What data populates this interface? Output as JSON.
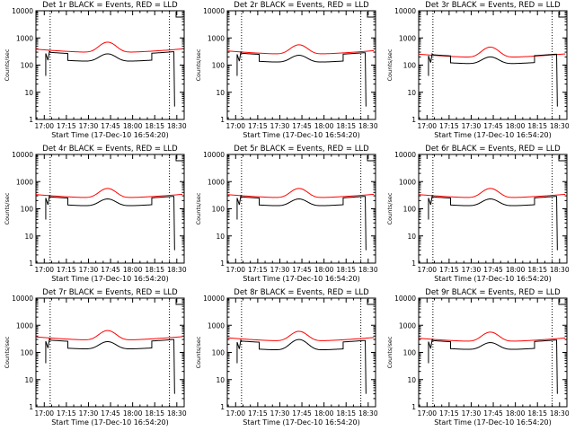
{
  "colors": {
    "events": "#000000",
    "lld": "#ff0000",
    "frame": "#000000",
    "background": "#ffffff"
  },
  "chart_data": [
    {
      "type": "line",
      "title": "Det 1r BLACK = Events, RED = LLD",
      "ylabel": "Counts/sec",
      "xlabel": "Start Time (17-Dec-10 16:54:20)",
      "y_scale": "log",
      "ylim": [
        1,
        10000
      ],
      "xlim": [
        "16:54:20",
        "18:35:00"
      ],
      "y_ticks": [
        "1",
        "10",
        "100",
        "1000",
        "10000"
      ],
      "x_ticks": [
        "17:00",
        "17:15",
        "17:30",
        "17:45",
        "18:00",
        "18:15",
        "18:30"
      ],
      "vlines": [
        "17:04",
        "18:25"
      ],
      "series_names": [
        "Events",
        "LLD"
      ],
      "peak": {
        "lld": 700,
        "events": 260
      },
      "base": {
        "lld": 290,
        "events": 135
      }
    },
    {
      "type": "line",
      "title": "Det 2r BLACK = Events, RED = LLD",
      "ylabel": "Counts/sec",
      "xlabel": "Start Time (17-Dec-10 16:54:20)",
      "y_scale": "log",
      "ylim": [
        1,
        10000
      ],
      "xlim": [
        "16:54:20",
        "18:35:00"
      ],
      "y_ticks": [
        "1",
        "10",
        "100",
        "1000",
        "10000"
      ],
      "x_ticks": [
        "17:00",
        "17:15",
        "17:30",
        "17:45",
        "18:00",
        "18:15",
        "18:30"
      ],
      "vlines": [
        "17:04",
        "18:25"
      ],
      "series_names": [
        "Events",
        "LLD"
      ],
      "peak": {
        "lld": 560,
        "events": 230
      },
      "base": {
        "lld": 250,
        "events": 125
      }
    },
    {
      "type": "line",
      "title": "Det 3r BLACK = Events, RED = LLD",
      "ylabel": "Counts/sec",
      "xlabel": "Start Time (17-Dec-10 16:54:20)",
      "y_scale": "log",
      "ylim": [
        1,
        10000
      ],
      "xlim": [
        "16:54:20",
        "18:35:00"
      ],
      "y_ticks": [
        "1",
        "10",
        "100",
        "1000",
        "10000"
      ],
      "x_ticks": [
        "17:00",
        "17:15",
        "17:30",
        "17:45",
        "18:00",
        "18:15",
        "18:30"
      ],
      "vlines": [
        "17:04",
        "18:25"
      ],
      "series_names": [
        "Events",
        "LLD"
      ],
      "peak": {
        "lld": 460,
        "events": 200
      },
      "base": {
        "lld": 190,
        "events": 110
      }
    },
    {
      "type": "line",
      "title": "Det 4r BLACK = Events, RED = LLD",
      "ylabel": "Counts/sec",
      "xlabel": "Start Time (17-Dec-10 16:54:20)",
      "y_scale": "log",
      "ylim": [
        1,
        10000
      ],
      "xlim": [
        "16:54:20",
        "18:35:00"
      ],
      "y_ticks": [
        "1",
        "10",
        "100",
        "1000",
        "10000"
      ],
      "x_ticks": [
        "17:00",
        "17:15",
        "17:30",
        "17:45",
        "18:00",
        "18:15",
        "18:30"
      ],
      "vlines": [
        "17:04",
        "18:25"
      ],
      "series_names": [
        "Events",
        "LLD"
      ],
      "peak": {
        "lld": 560,
        "events": 230
      },
      "base": {
        "lld": 250,
        "events": 125
      }
    },
    {
      "type": "line",
      "title": "Det 5r BLACK = Events, RED = LLD",
      "ylabel": "Counts/sec",
      "xlabel": "Start Time (17-Dec-10 16:54:20)",
      "y_scale": "log",
      "ylim": [
        1,
        10000
      ],
      "xlim": [
        "16:54:20",
        "18:35:00"
      ],
      "y_ticks": [
        "1",
        "10",
        "100",
        "1000",
        "10000"
      ],
      "x_ticks": [
        "17:00",
        "17:15",
        "17:30",
        "17:45",
        "18:00",
        "18:15",
        "18:30"
      ],
      "vlines": [
        "17:04",
        "18:25"
      ],
      "series_names": [
        "Events",
        "LLD"
      ],
      "peak": {
        "lld": 560,
        "events": 230
      },
      "base": {
        "lld": 250,
        "events": 125
      }
    },
    {
      "type": "line",
      "title": "Det 6r BLACK = Events, RED = LLD",
      "ylabel": "Counts/sec",
      "xlabel": "Start Time (17-Dec-10 16:54:20)",
      "y_scale": "log",
      "ylim": [
        1,
        10000
      ],
      "xlim": [
        "16:54:20",
        "18:35:00"
      ],
      "y_ticks": [
        "1",
        "10",
        "100",
        "1000",
        "10000"
      ],
      "x_ticks": [
        "17:00",
        "17:15",
        "17:30",
        "17:45",
        "18:00",
        "18:15",
        "18:30"
      ],
      "vlines": [
        "17:04",
        "18:25"
      ],
      "series_names": [
        "Events",
        "LLD"
      ],
      "peak": {
        "lld": 560,
        "events": 230
      },
      "base": {
        "lld": 250,
        "events": 125
      }
    },
    {
      "type": "line",
      "title": "Det 7r BLACK = Events, RED = LLD",
      "ylabel": "Counts/sec",
      "xlabel": "Start Time (17-Dec-10 16:54:20)",
      "y_scale": "log",
      "ylim": [
        1,
        10000
      ],
      "xlim": [
        "16:54:20",
        "18:35:00"
      ],
      "y_ticks": [
        "1",
        "10",
        "100",
        "1000",
        "10000"
      ],
      "x_ticks": [
        "17:00",
        "17:15",
        "17:30",
        "17:45",
        "18:00",
        "18:15",
        "18:30"
      ],
      "vlines": [
        "17:04",
        "18:25"
      ],
      "series_names": [
        "Events",
        "LLD"
      ],
      "peak": {
        "lld": 640,
        "events": 250
      },
      "base": {
        "lld": 280,
        "events": 130
      }
    },
    {
      "type": "line",
      "title": "Det 8r BLACK = Events, RED = LLD",
      "ylabel": "Counts/sec",
      "xlabel": "Start Time (17-Dec-10 16:54:20)",
      "y_scale": "log",
      "ylim": [
        1,
        10000
      ],
      "xlim": [
        "16:54:20",
        "18:35:00"
      ],
      "y_ticks": [
        "1",
        "10",
        "100",
        "1000",
        "10000"
      ],
      "x_ticks": [
        "17:00",
        "17:15",
        "17:30",
        "17:45",
        "18:00",
        "18:15",
        "18:30"
      ],
      "vlines": [
        "17:04",
        "18:25"
      ],
      "series_names": [
        "Events",
        "LLD"
      ],
      "peak": {
        "lld": 600,
        "events": 300
      },
      "base": {
        "lld": 260,
        "events": 120
      }
    },
    {
      "type": "line",
      "title": "Det 9r BLACK = Events, RED = LLD",
      "ylabel": "Counts/sec",
      "xlabel": "Start Time (17-Dec-10 16:54:20)",
      "y_scale": "log",
      "ylim": [
        1,
        10000
      ],
      "xlim": [
        "16:54:20",
        "18:35:00"
      ],
      "y_ticks": [
        "1",
        "10",
        "100",
        "1000",
        "10000"
      ],
      "x_ticks": [
        "17:00",
        "17:15",
        "17:30",
        "17:45",
        "18:00",
        "18:15",
        "18:30"
      ],
      "vlines": [
        "17:04",
        "18:25"
      ],
      "series_names": [
        "Events",
        "LLD"
      ],
      "peak": {
        "lld": 560,
        "events": 230
      },
      "base": {
        "lld": 250,
        "events": 125
      }
    }
  ]
}
